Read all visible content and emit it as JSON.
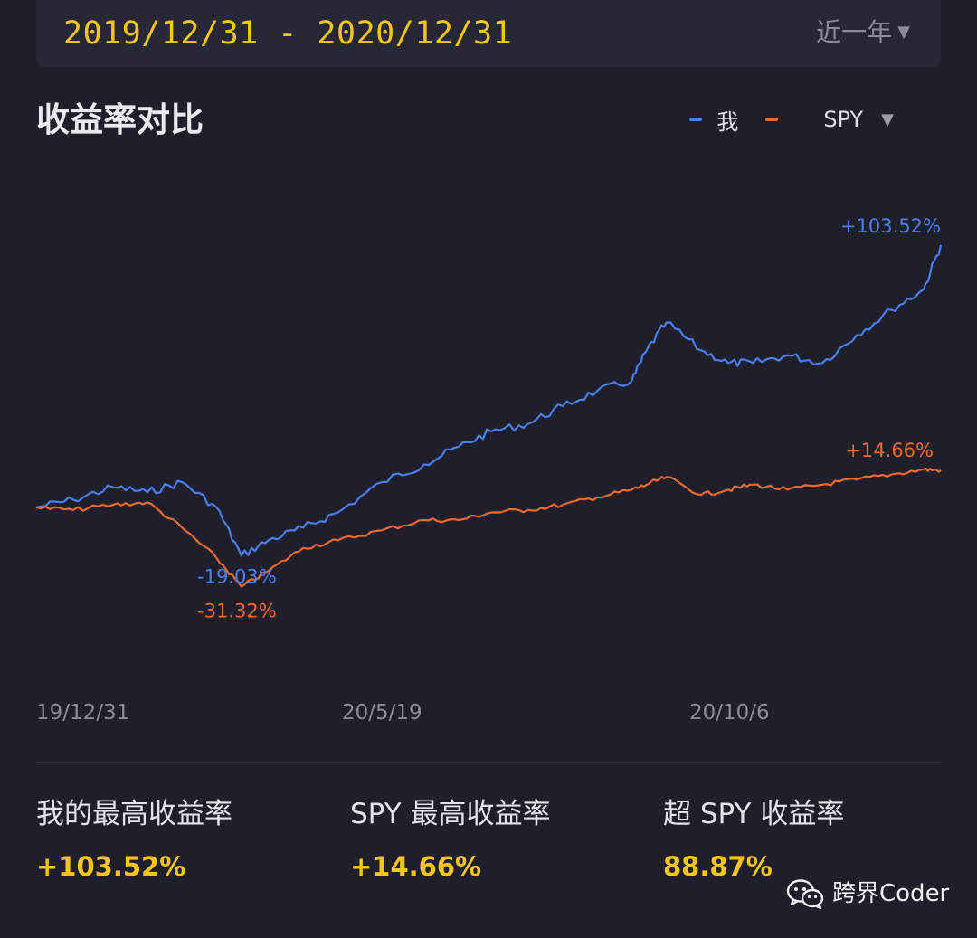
{
  "header": {
    "date_range": "2019/12/31 - 2020/12/31",
    "period_label": "近一年",
    "period_caret": "▼"
  },
  "chart_title": "收益率对比",
  "legend": {
    "me_label": "我",
    "benchmark_label": "SPY",
    "benchmark_caret": "▼"
  },
  "chart_data": {
    "type": "line",
    "x_tick_labels": [
      "19/12/31",
      "20/5/19",
      "20/10/6"
    ],
    "x_range": [
      "2019-12-31",
      "2020-12-31"
    ],
    "y_unit": "%",
    "y_range_visible": [
      -40,
      125
    ],
    "grid": false,
    "legend_position": "top-right",
    "colors": {
      "me": "#4a7ff0",
      "spy": "#f26a2e"
    },
    "annotations": [
      {
        "series": "我",
        "text": "+103.52%",
        "kind": "max"
      },
      {
        "series": "SPY",
        "text": "+14.66%",
        "kind": "max"
      },
      {
        "series": "我",
        "text": "-19.03%",
        "kind": "min"
      },
      {
        "series": "SPY",
        "text": "-31.32%",
        "kind": "min"
      }
    ],
    "series": [
      {
        "name": "我",
        "x": [
          "2019-12-31",
          "2020-01-15",
          "2020-01-31",
          "2020-02-14",
          "2020-02-28",
          "2020-03-13",
          "2020-03-23",
          "2020-04-03",
          "2020-04-17",
          "2020-05-01",
          "2020-05-19",
          "2020-06-05",
          "2020-06-19",
          "2020-07-02",
          "2020-07-17",
          "2020-07-31",
          "2020-08-14",
          "2020-08-28",
          "2020-09-03",
          "2020-09-11",
          "2020-09-25",
          "2020-10-06",
          "2020-10-16",
          "2020-10-30",
          "2020-11-13",
          "2020-11-27",
          "2020-12-11",
          "2020-12-24",
          "2020-12-31"
        ],
        "values": [
          0,
          3,
          8,
          6,
          10,
          0,
          -19.03,
          -13,
          -8,
          -2,
          10,
          17,
          24,
          30,
          33,
          40,
          46,
          50,
          62,
          73,
          62,
          57,
          57,
          60,
          57,
          68,
          78,
          86,
          103.52
        ]
      },
      {
        "name": "SPY",
        "x": [
          "2019-12-31",
          "2020-01-15",
          "2020-01-31",
          "2020-02-14",
          "2020-02-28",
          "2020-03-13",
          "2020-03-23",
          "2020-04-03",
          "2020-04-17",
          "2020-05-01",
          "2020-05-19",
          "2020-06-05",
          "2020-06-19",
          "2020-07-02",
          "2020-07-17",
          "2020-07-31",
          "2020-08-14",
          "2020-08-28",
          "2020-09-03",
          "2020-09-11",
          "2020-09-25",
          "2020-10-06",
          "2020-10-16",
          "2020-10-30",
          "2020-11-13",
          "2020-11-27",
          "2020-12-11",
          "2020-12-24",
          "2020-12-31"
        ],
        "values": [
          0,
          -1,
          1,
          2,
          -8,
          -20,
          -31.32,
          -25,
          -16,
          -13,
          -9,
          -5,
          -5,
          -2,
          -1,
          1,
          4,
          7,
          9,
          12,
          5,
          7,
          9,
          7,
          9,
          11,
          13,
          15,
          14.66
        ]
      }
    ]
  },
  "stats": {
    "my_max_label": "我的最高收益率",
    "my_max_value": "+103.52%",
    "spy_max_label": "SPY 最高收益率",
    "spy_max_value": "+14.66%",
    "excess_label": "超 SPY 收益率",
    "excess_value": "88.87%"
  },
  "watermark": {
    "icon": "wechat-icon",
    "text": "跨界Coder"
  }
}
